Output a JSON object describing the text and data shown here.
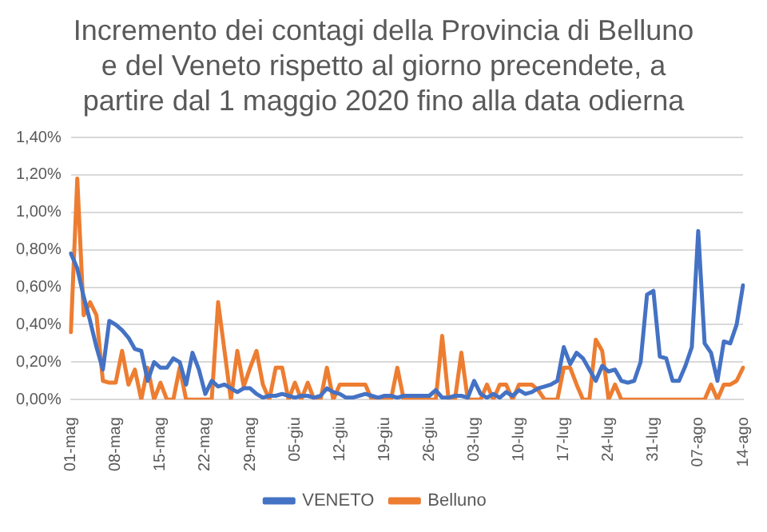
{
  "chart_data": {
    "type": "line",
    "title": "Incremento dei contagi della Provincia di Belluno\ne del  Veneto rispetto al giorno precendete, a\npartire dal 1 maggio 2020 fino alla data odierna",
    "categories": [
      "01-mag",
      null,
      null,
      null,
      null,
      null,
      null,
      "08-mag",
      null,
      null,
      null,
      null,
      null,
      null,
      "15-mag",
      null,
      null,
      null,
      null,
      null,
      null,
      "22-mag",
      null,
      null,
      null,
      null,
      null,
      null,
      "29-mag",
      null,
      null,
      null,
      null,
      null,
      null,
      "05-giu",
      null,
      null,
      null,
      null,
      null,
      null,
      "12-giu",
      null,
      null,
      null,
      null,
      null,
      null,
      "19-giu",
      null,
      null,
      null,
      null,
      null,
      null,
      "26-giu",
      null,
      null,
      null,
      null,
      null,
      null,
      "03-lug",
      null,
      null,
      null,
      null,
      null,
      null,
      "10-lug",
      null,
      null,
      null,
      null,
      null,
      null,
      "17-lug",
      null,
      null,
      null,
      null,
      null,
      null,
      "24-lug",
      null,
      null,
      null,
      null,
      null,
      null,
      "31-lug",
      null,
      null,
      null,
      null,
      null,
      null,
      "07-ago",
      null,
      null,
      null,
      null,
      null,
      null,
      "14-ago"
    ],
    "series": [
      {
        "name": "VENETO",
        "color": "#4472c4",
        "values": [
          0.78,
          0.7,
          0.55,
          0.42,
          0.28,
          0.16,
          0.42,
          0.4,
          0.37,
          0.33,
          0.27,
          0.26,
          0.1,
          0.2,
          0.17,
          0.17,
          0.22,
          0.2,
          0.08,
          0.25,
          0.16,
          0.03,
          0.1,
          0.07,
          0.08,
          0.06,
          0.04,
          0.06,
          0.06,
          0.03,
          0.01,
          0.02,
          0.02,
          0.03,
          0.02,
          0.01,
          0.02,
          0.02,
          0.01,
          0.02,
          0.06,
          0.04,
          0.03,
          0.01,
          0.01,
          0.02,
          0.03,
          0.02,
          0.01,
          0.02,
          0.02,
          0.01,
          0.02,
          0.02,
          0.02,
          0.02,
          0.02,
          0.05,
          0.01,
          0.01,
          0.02,
          0.02,
          0.01,
          0.1,
          0.03,
          0.01,
          0.03,
          0.01,
          0.04,
          0.02,
          0.05,
          0.03,
          0.04,
          0.06,
          0.07,
          0.08,
          0.1,
          0.28,
          0.19,
          0.25,
          0.22,
          0.16,
          0.1,
          0.18,
          0.15,
          0.16,
          0.1,
          0.09,
          0.1,
          0.2,
          0.56,
          0.58,
          0.23,
          0.22,
          0.1,
          0.1,
          0.18,
          0.28,
          0.9,
          0.3,
          0.25,
          0.1,
          0.31,
          0.3,
          0.4,
          0.61
        ]
      },
      {
        "name": "Belluno",
        "color": "#ed7d31",
        "values": [
          0.36,
          1.18,
          0.45,
          0.52,
          0.45,
          0.1,
          0.09,
          0.09,
          0.26,
          0.08,
          0.16,
          0,
          0.17,
          0,
          0.09,
          0,
          0,
          0.17,
          0,
          0,
          0,
          0,
          0,
          0.52,
          0.26,
          0,
          0.26,
          0.07,
          0.17,
          0.26,
          0.08,
          0,
          0.17,
          0.17,
          0,
          0.09,
          0,
          0.09,
          0,
          0,
          0.17,
          0,
          0.08,
          0.08,
          0.08,
          0.08,
          0.08,
          0,
          0,
          0,
          0,
          0.17,
          0,
          0,
          0,
          0,
          0,
          0,
          0.34,
          0,
          0,
          0.25,
          0,
          0,
          0,
          0.08,
          0,
          0.08,
          0.08,
          0,
          0.08,
          0.08,
          0.08,
          0.05,
          0,
          0,
          0,
          0.17,
          0.17,
          0.08,
          0,
          0,
          0.32,
          0.26,
          0,
          0.08,
          0,
          0,
          0,
          0,
          0,
          0,
          0,
          0,
          0,
          0,
          0,
          0,
          0,
          0,
          0.08,
          0,
          0.08,
          0.08,
          0.1,
          0.17
        ]
      }
    ],
    "ylim": [
      0,
      1.4
    ],
    "yticks": [
      {
        "value": 0,
        "label": "0,00%"
      },
      {
        "value": 0.2,
        "label": "0,20%"
      },
      {
        "value": 0.4,
        "label": "0,40%"
      },
      {
        "value": 0.6,
        "label": "0,60%"
      },
      {
        "value": 0.8,
        "label": "0,80%"
      },
      {
        "value": 1.0,
        "label": "1,00%"
      },
      {
        "value": 1.2,
        "label": "1,20%"
      },
      {
        "value": 1.4,
        "label": "1,40%"
      }
    ],
    "grid": "y",
    "legend": "bottom",
    "marker": "none",
    "line_style": "solid"
  }
}
